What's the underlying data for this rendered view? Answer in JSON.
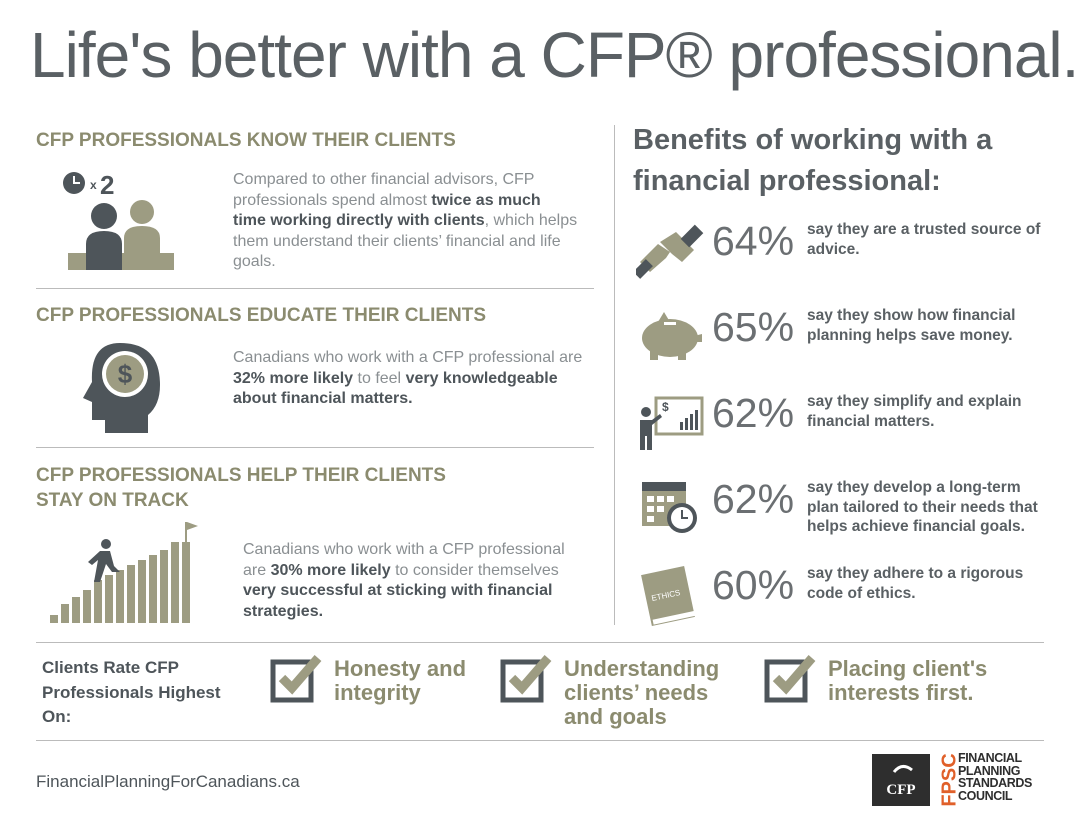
{
  "title": "Life's better with a CFP® professional.",
  "sections": [
    {
      "heading": "CFP PROFESSIONALS KNOW THEIR CLIENTS",
      "icon_text": [
        "x",
        "2"
      ],
      "body": [
        {
          "text": "Compared to other financial advisors, CFP professionals spend almost ",
          "bold": false
        },
        {
          "text": "twice as much time working directly with clients",
          "bold": true
        },
        {
          "text": ", which helps them understand their clients’ financial and life goals.",
          "bold": false
        }
      ]
    },
    {
      "heading": "CFP PROFESSIONALS EDUCATE THEIR CLIENTS",
      "icon_text": [
        "$"
      ],
      "body": [
        {
          "text": "Canadians who work with a CFP professional are ",
          "bold": false
        },
        {
          "text": "32% more likely",
          "bold": true
        },
        {
          "text": " to feel ",
          "bold": false
        },
        {
          "text": "very knowledgeable about financial matters.",
          "bold": true
        }
      ]
    },
    {
      "heading": "CFP PROFESSIONALS HELP THEIR CLIENTS STAY ON TRACK",
      "icon_text": [],
      "body": [
        {
          "text": "Canadians who work with a CFP professional are ",
          "bold": false
        },
        {
          "text": "30% more likely",
          "bold": true
        },
        {
          "text": " to consider themselves ",
          "bold": false
        },
        {
          "text": "very successful at sticking with financial strategies.",
          "bold": true
        }
      ]
    }
  ],
  "benefits": {
    "title": "Benefits of working with a financial professional:",
    "items": [
      {
        "percent": "64%",
        "text": "say they are a trusted source of advice.",
        "icon_text": ""
      },
      {
        "percent": "65%",
        "text": "say they show how financial planning helps save money.",
        "icon_text": ""
      },
      {
        "percent": "62%",
        "text": "say they simplify and explain financial matters.",
        "icon_text": "$"
      },
      {
        "percent": "62%",
        "text": "say they develop a long-term plan tailored to their needs that helps achieve financial goals.",
        "icon_text": ""
      },
      {
        "percent": "60%",
        "text": "say they adhere to a rigorous code of ethics.",
        "icon_text": "ETHICS"
      }
    ]
  },
  "ratings": {
    "label": "Clients Rate CFP Professionals Highest On:",
    "items": [
      "Honesty and integrity",
      "Understanding clients’ needs and goals",
      "Placing client's interests first."
    ]
  },
  "footer": {
    "url": "FinancialPlanningForCanadians.ca",
    "logo_cfp": "CFP",
    "logo_fpsc": "FPSC",
    "council": "FINANCIAL PLANNING STANDARDS COUNCIL"
  }
}
